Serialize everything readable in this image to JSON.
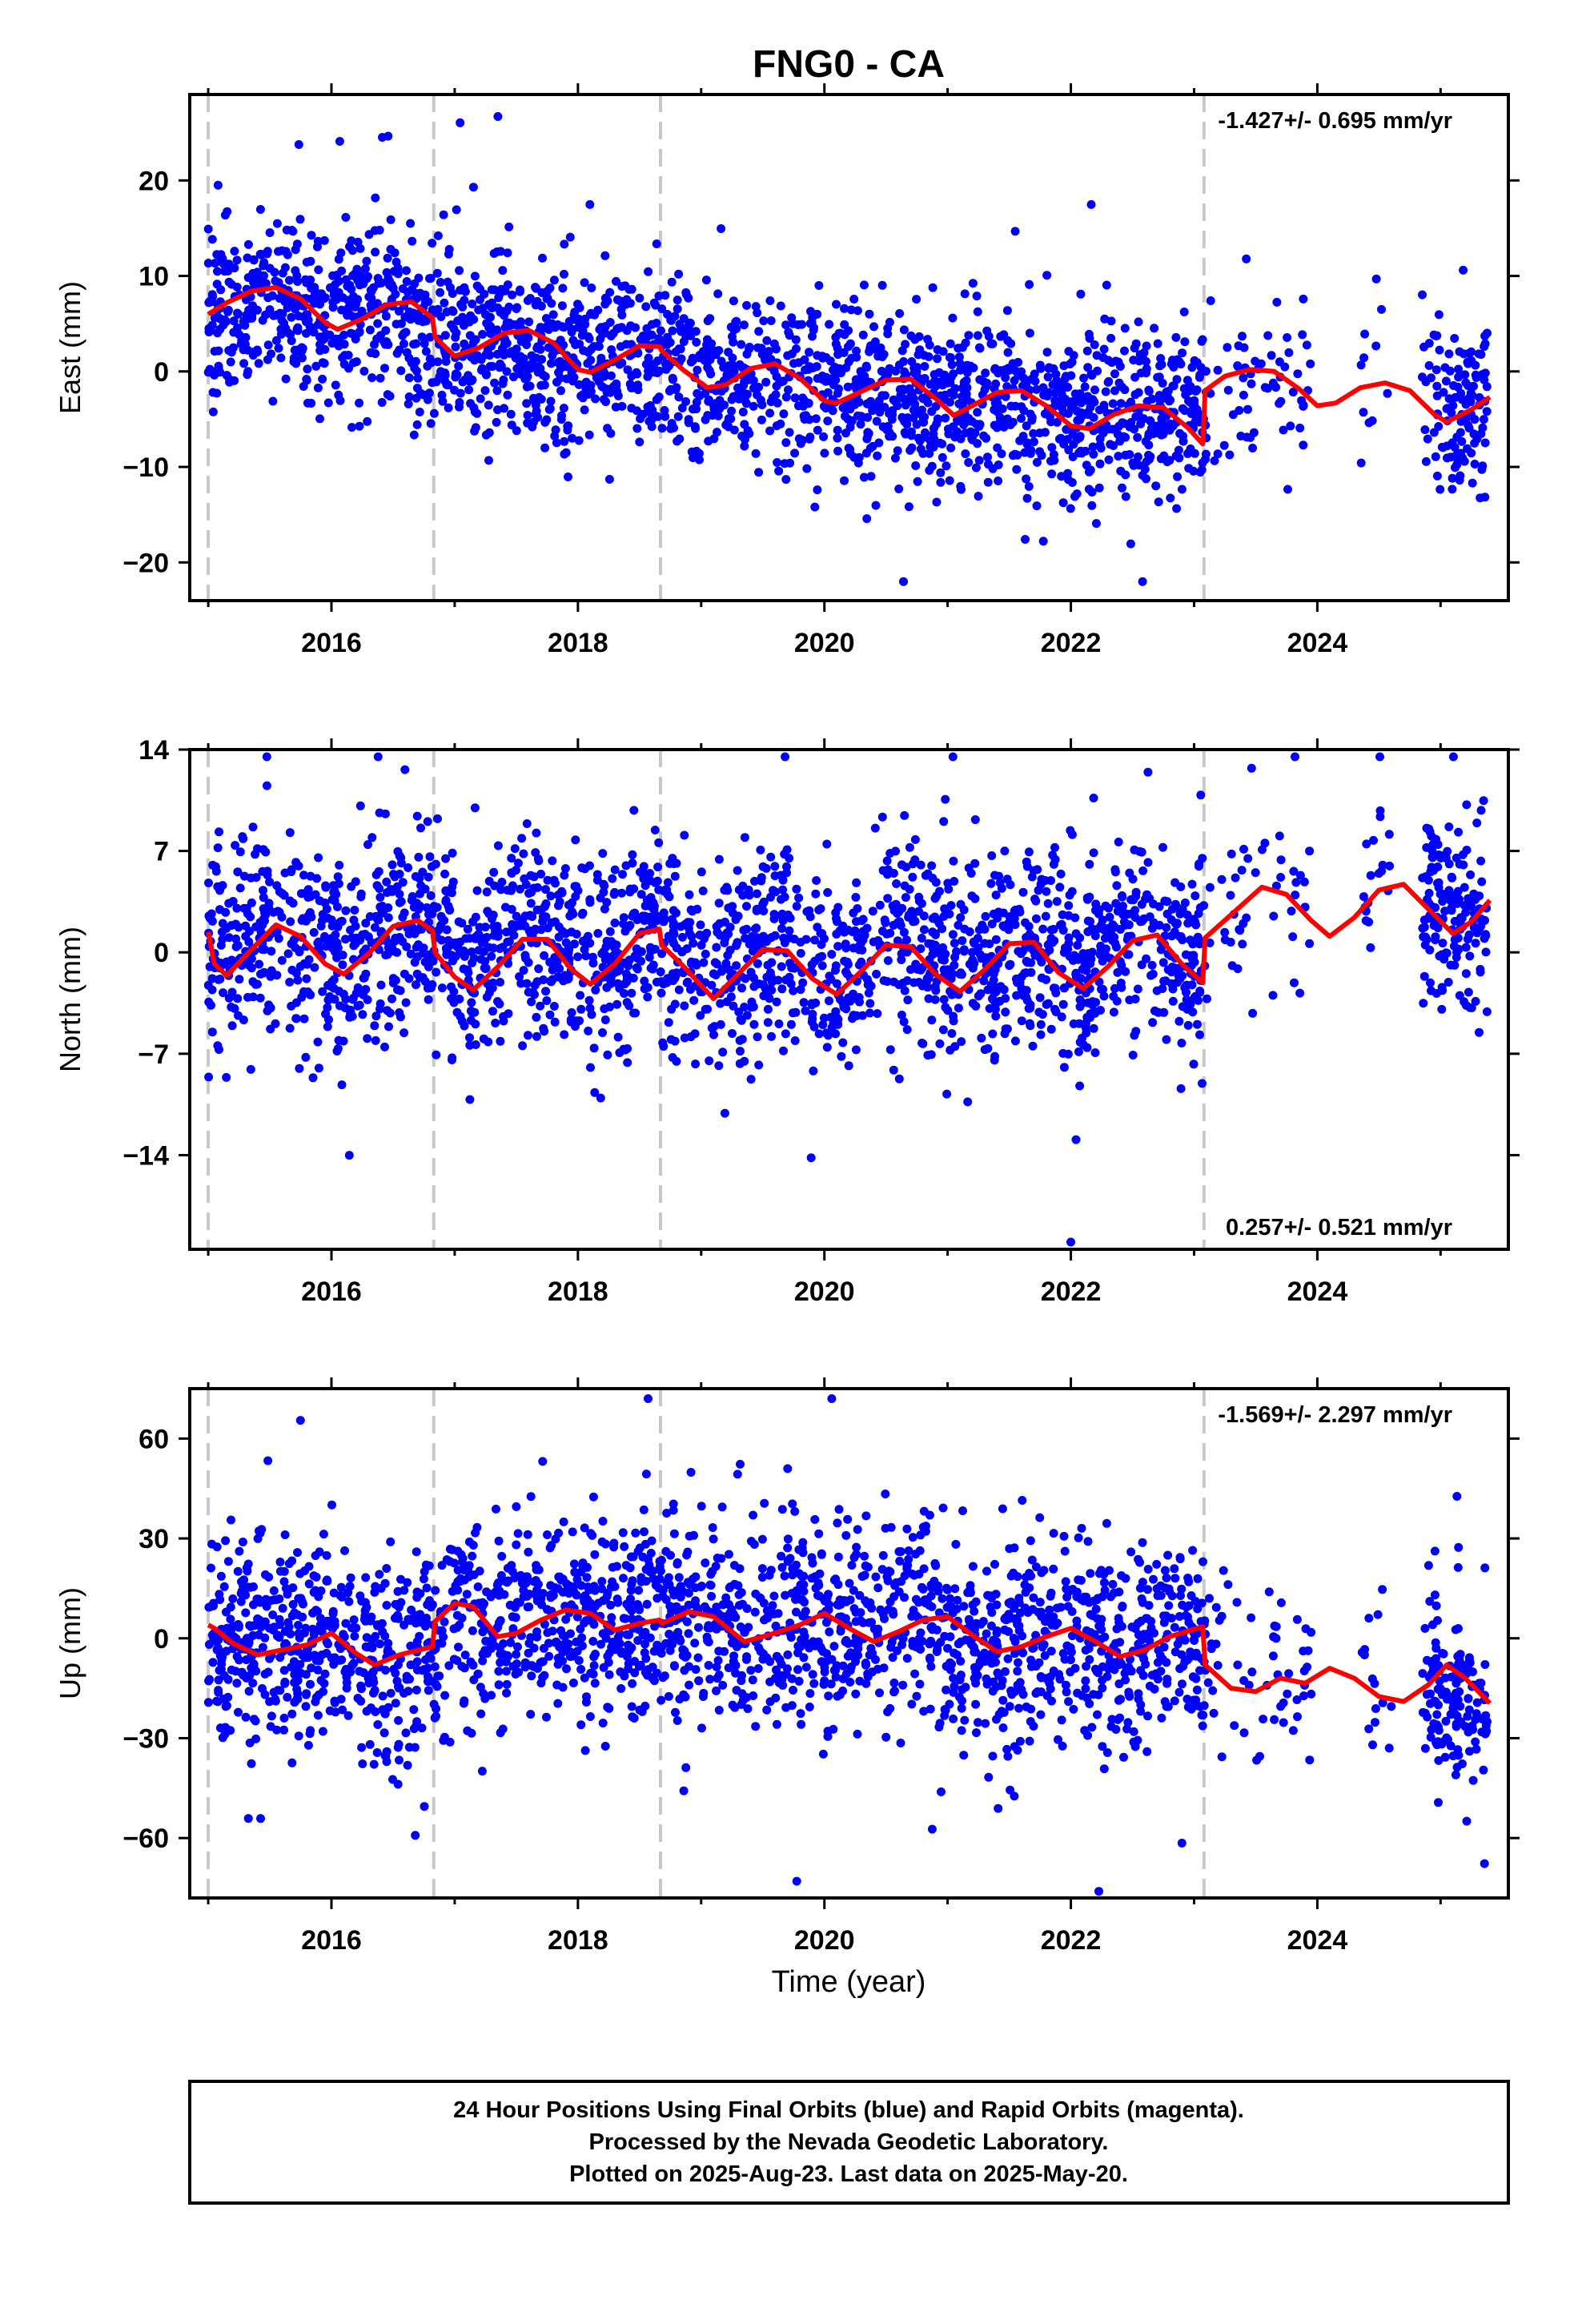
{
  "figure": {
    "title": "FNG0 - CA",
    "xlabel": "Time (year)",
    "footer_lines": [
      "24 Hour Positions Using Final Orbits (blue) and Rapid Orbits (magenta).",
      "Processed by the Nevada Geodetic Laboratory.",
      "Plotted on 2025-Aug-23. Last data on 2025-May-20."
    ],
    "colors": {
      "data": "#0000ff",
      "model": "#ff0000",
      "breaks": "#c8c8c8",
      "frame": "#000000"
    }
  },
  "chart_data": [
    {
      "type": "scatter",
      "ylabel": "East (mm)",
      "rate_label": "-1.427+/- 0.695 mm/yr",
      "rate_position": "top-right",
      "xlim": [
        2014.85,
        2025.55
      ],
      "ylim": [
        -24,
        29
      ],
      "xticks": [
        2016,
        2018,
        2020,
        2022,
        2024
      ],
      "yticks": [
        -20,
        -10,
        0,
        10,
        20
      ],
      "breaks": [
        2015.0,
        2016.83,
        2018.67,
        2023.08
      ],
      "gaps": [
        [
          2023.95,
          2024.35
        ],
        [
          2024.6,
          2024.85
        ]
      ],
      "sparse": [
        [
          2023.1,
          2023.95
        ],
        [
          2024.35,
          2024.6
        ]
      ],
      "series": [
        {
          "name": "Final Orbits",
          "color": "#0000ff",
          "mean": [
            [
              2015.0,
              5
            ],
            [
              2015.5,
              8
            ],
            [
              2016.0,
              5
            ],
            [
              2016.5,
              7
            ],
            [
              2016.83,
              3
            ],
            [
              2017.5,
              3
            ],
            [
              2018.0,
              1
            ],
            [
              2018.67,
              2
            ],
            [
              2019.0,
              -1
            ],
            [
              2019.5,
              0
            ],
            [
              2020.0,
              -2
            ],
            [
              2020.5,
              -2
            ],
            [
              2021.0,
              -4
            ],
            [
              2021.5,
              -3
            ],
            [
              2022.0,
              -5
            ],
            [
              2022.5,
              -4
            ],
            [
              2023.08,
              -4
            ],
            [
              2023.5,
              1
            ],
            [
              2024.0,
              -2
            ],
            [
              2024.5,
              -1
            ],
            [
              2025.0,
              -4
            ],
            [
              2025.4,
              -4
            ]
          ],
          "scatter_sd": 4.5,
          "n_points": 2400,
          "outlier_range": [
            -22,
            28
          ]
        }
      ],
      "model": [
        [
          2015.0,
          6
        ],
        [
          2015.15,
          7.2
        ],
        [
          2015.35,
          8.4
        ],
        [
          2015.55,
          8.8
        ],
        [
          2015.75,
          7.6
        ],
        [
          2015.95,
          5.1
        ],
        [
          2016.05,
          4.4
        ],
        [
          2016.25,
          5.5
        ],
        [
          2016.45,
          7.0
        ],
        [
          2016.65,
          7.3
        ],
        [
          2016.82,
          5.6
        ],
        [
          2016.84,
          3.6
        ],
        [
          2017.0,
          1.6
        ],
        [
          2017.2,
          2.5
        ],
        [
          2017.4,
          4.0
        ],
        [
          2017.6,
          4.3
        ],
        [
          2017.8,
          3.0
        ],
        [
          2018.0,
          0.2
        ],
        [
          2018.1,
          -0.1
        ],
        [
          2018.3,
          1.2
        ],
        [
          2018.5,
          2.7
        ],
        [
          2018.66,
          2.6
        ],
        [
          2018.68,
          2.2
        ],
        [
          2018.85,
          0.2
        ],
        [
          2019.05,
          -1.7
        ],
        [
          2019.2,
          -1.4
        ],
        [
          2019.4,
          0.3
        ],
        [
          2019.6,
          0.8
        ],
        [
          2019.8,
          -0.7
        ],
        [
          2020.0,
          -3.1
        ],
        [
          2020.1,
          -3.3
        ],
        [
          2020.3,
          -2.1
        ],
        [
          2020.5,
          -0.9
        ],
        [
          2020.7,
          -0.8
        ],
        [
          2020.9,
          -2.8
        ],
        [
          2021.05,
          -4.6
        ],
        [
          2021.2,
          -3.6
        ],
        [
          2021.4,
          -2.2
        ],
        [
          2021.6,
          -2.0
        ],
        [
          2021.8,
          -3.6
        ],
        [
          2022.0,
          -5.7
        ],
        [
          2022.15,
          -6.0
        ],
        [
          2022.35,
          -4.5
        ],
        [
          2022.55,
          -3.6
        ],
        [
          2022.75,
          -3.8
        ],
        [
          2022.95,
          -5.9
        ],
        [
          2023.07,
          -7.6
        ],
        [
          2023.09,
          -2.0
        ],
        [
          2023.25,
          -0.5
        ],
        [
          2023.45,
          0.2
        ],
        [
          2023.65,
          0.0
        ],
        [
          2023.85,
          -1.8
        ],
        [
          2024.0,
          -3.6
        ],
        [
          2024.15,
          -3.3
        ],
        [
          2024.35,
          -1.7
        ],
        [
          2024.55,
          -1.2
        ],
        [
          2024.75,
          -2.0
        ],
        [
          2024.95,
          -4.5
        ],
        [
          2025.05,
          -5.3
        ],
        [
          2025.25,
          -4.0
        ],
        [
          2025.4,
          -2.7
        ]
      ]
    },
    {
      "type": "scatter",
      "ylabel": "North (mm)",
      "rate_label": "0.257+/- 0.521 mm/yr",
      "rate_position": "bottom-right",
      "xlim": [
        2014.85,
        2025.55
      ],
      "ylim": [
        -20.5,
        14
      ],
      "xticks": [
        2016,
        2018,
        2020,
        2022,
        2024
      ],
      "yticks": [
        -14,
        -7,
        0,
        7,
        14
      ],
      "breaks": [
        2015.0,
        2016.83,
        2018.67,
        2023.08
      ],
      "gaps": [
        [
          2023.95,
          2024.35
        ],
        [
          2024.6,
          2024.85
        ]
      ],
      "sparse": [
        [
          2023.1,
          2023.95
        ],
        [
          2024.35,
          2024.6
        ]
      ],
      "series": [
        {
          "name": "Final Orbits",
          "color": "#0000ff",
          "mean": [
            [
              2015.0,
              0
            ],
            [
              2015.6,
              2
            ],
            [
              2016.2,
              -1
            ],
            [
              2016.7,
              3
            ],
            [
              2017.1,
              -1
            ],
            [
              2017.6,
              2
            ],
            [
              2018.1,
              -1
            ],
            [
              2018.6,
              2
            ],
            [
              2019.1,
              -2
            ],
            [
              2019.6,
              1
            ],
            [
              2020.1,
              -2
            ],
            [
              2020.6,
              2
            ],
            [
              2021.1,
              -2
            ],
            [
              2021.6,
              1
            ],
            [
              2022.1,
              -2
            ],
            [
              2022.6,
              2
            ],
            [
              2023.0,
              -1
            ],
            [
              2023.5,
              5
            ],
            [
              2024.0,
              2
            ],
            [
              2024.6,
              5
            ],
            [
              2025.0,
              3
            ],
            [
              2025.4,
              2
            ]
          ],
          "scatter_sd": 3.4,
          "n_points": 2400,
          "outlier_range": [
            -20,
            13.5
          ]
        }
      ],
      "model": [
        [
          2015.0,
          1.4
        ],
        [
          2015.05,
          -0.8
        ],
        [
          2015.15,
          -1.6
        ],
        [
          2015.35,
          0.2
        ],
        [
          2015.55,
          1.9
        ],
        [
          2015.75,
          1.1
        ],
        [
          2015.95,
          -0.8
        ],
        [
          2016.1,
          -1.5
        ],
        [
          2016.3,
          -0.1
        ],
        [
          2016.5,
          1.8
        ],
        [
          2016.7,
          2.2
        ],
        [
          2016.82,
          1.5
        ],
        [
          2016.84,
          0.0
        ],
        [
          2017.0,
          -1.7
        ],
        [
          2017.15,
          -2.6
        ],
        [
          2017.35,
          -1.0
        ],
        [
          2017.55,
          0.9
        ],
        [
          2017.75,
          0.9
        ],
        [
          2017.95,
          -1.2
        ],
        [
          2018.1,
          -2.2
        ],
        [
          2018.3,
          -0.8
        ],
        [
          2018.5,
          1.3
        ],
        [
          2018.66,
          1.6
        ],
        [
          2018.68,
          0.5
        ],
        [
          2018.85,
          -0.9
        ],
        [
          2019.1,
          -3.2
        ],
        [
          2019.3,
          -1.5
        ],
        [
          2019.5,
          0.2
        ],
        [
          2019.7,
          0.1
        ],
        [
          2019.9,
          -1.8
        ],
        [
          2020.1,
          -2.9
        ],
        [
          2020.3,
          -1.3
        ],
        [
          2020.5,
          0.5
        ],
        [
          2020.7,
          0.4
        ],
        [
          2020.9,
          -1.5
        ],
        [
          2021.1,
          -2.7
        ],
        [
          2021.3,
          -1.2
        ],
        [
          2021.5,
          0.6
        ],
        [
          2021.7,
          0.7
        ],
        [
          2021.9,
          -1.4
        ],
        [
          2022.1,
          -2.5
        ],
        [
          2022.3,
          -1.0
        ],
        [
          2022.5,
          0.8
        ],
        [
          2022.7,
          1.2
        ],
        [
          2022.9,
          -0.8
        ],
        [
          2023.07,
          -2.1
        ],
        [
          2023.09,
          1.0
        ],
        [
          2023.3,
          2.6
        ],
        [
          2023.55,
          4.5
        ],
        [
          2023.75,
          4.0
        ],
        [
          2023.95,
          2.2
        ],
        [
          2024.1,
          1.1
        ],
        [
          2024.3,
          2.4
        ],
        [
          2024.5,
          4.3
        ],
        [
          2024.7,
          4.7
        ],
        [
          2024.9,
          3.0
        ],
        [
          2025.1,
          1.3
        ],
        [
          2025.25,
          2.1
        ],
        [
          2025.4,
          3.6
        ]
      ]
    },
    {
      "type": "scatter",
      "ylabel": "Up (mm)",
      "rate_label": "-1.569+/- 2.297 mm/yr",
      "rate_position": "top-right",
      "xlim": [
        2014.85,
        2025.55
      ],
      "ylim": [
        -78,
        75
      ],
      "xticks": [
        2016,
        2018,
        2020,
        2022,
        2024
      ],
      "yticks": [
        -60,
        -30,
        0,
        30,
        60
      ],
      "breaks": [
        2015.0,
        2016.83,
        2018.67,
        2023.08
      ],
      "gaps": [
        [
          2023.95,
          2024.35
        ],
        [
          2024.6,
          2024.85
        ]
      ],
      "sparse": [
        [
          2023.1,
          2023.95
        ],
        [
          2024.35,
          2024.6
        ]
      ],
      "series": [
        {
          "name": "Final Orbits",
          "color": "#0000ff",
          "mean": [
            [
              2015.0,
              0
            ],
            [
              2015.5,
              -5
            ],
            [
              2016.0,
              0
            ],
            [
              2016.4,
              -8
            ],
            [
              2016.83,
              -2
            ],
            [
              2017.0,
              10
            ],
            [
              2017.3,
              2
            ],
            [
              2017.8,
              8
            ],
            [
              2018.3,
              5
            ],
            [
              2018.8,
              8
            ],
            [
              2019.3,
              2
            ],
            [
              2019.8,
              5
            ],
            [
              2020.3,
              0
            ],
            [
              2020.8,
              8
            ],
            [
              2021.3,
              -5
            ],
            [
              2021.8,
              2
            ],
            [
              2022.3,
              -5
            ],
            [
              2022.8,
              2
            ],
            [
              2023.08,
              0
            ],
            [
              2023.5,
              -15
            ],
            [
              2024.0,
              -10
            ],
            [
              2024.5,
              -18
            ],
            [
              2025.0,
              -12
            ],
            [
              2025.4,
              -20
            ]
          ],
          "scatter_sd": 15,
          "n_points": 2400,
          "outlier_range": [
            -76,
            72
          ]
        }
      ],
      "model": [
        [
          2015.0,
          4.0
        ],
        [
          2015.05,
          3.0
        ],
        [
          2015.2,
          -1.5
        ],
        [
          2015.4,
          -5.0
        ],
        [
          2015.6,
          -3.5
        ],
        [
          2015.8,
          -2.0
        ],
        [
          2016.0,
          1.5
        ],
        [
          2016.2,
          -4.5
        ],
        [
          2016.35,
          -8.0
        ],
        [
          2016.55,
          -5.0
        ],
        [
          2016.82,
          -2.5
        ],
        [
          2016.84,
          5.0
        ],
        [
          2017.0,
          10.5
        ],
        [
          2017.15,
          9.5
        ],
        [
          2017.35,
          0.5
        ],
        [
          2017.5,
          1.5
        ],
        [
          2017.7,
          5.5
        ],
        [
          2017.9,
          8.5
        ],
        [
          2018.1,
          7.5
        ],
        [
          2018.3,
          2.5
        ],
        [
          2018.5,
          4.5
        ],
        [
          2018.66,
          5.5
        ],
        [
          2018.68,
          4.5
        ],
        [
          2018.9,
          8.0
        ],
        [
          2019.1,
          6.5
        ],
        [
          2019.35,
          -1.0
        ],
        [
          2019.55,
          1.0
        ],
        [
          2019.8,
          4.0
        ],
        [
          2020.0,
          7.5
        ],
        [
          2020.2,
          3.0
        ],
        [
          2020.4,
          -1.0
        ],
        [
          2020.6,
          2.0
        ],
        [
          2020.8,
          5.5
        ],
        [
          2021.0,
          6.5
        ],
        [
          2021.2,
          1.0
        ],
        [
          2021.4,
          -4.0
        ],
        [
          2021.6,
          -2.5
        ],
        [
          2021.8,
          0.5
        ],
        [
          2022.0,
          3.0
        ],
        [
          2022.2,
          -1.0
        ],
        [
          2022.4,
          -5.5
        ],
        [
          2022.6,
          -3.5
        ],
        [
          2022.8,
          0.5
        ],
        [
          2023.07,
          3.5
        ],
        [
          2023.09,
          -8.0
        ],
        [
          2023.3,
          -15.0
        ],
        [
          2023.5,
          -16.0
        ],
        [
          2023.7,
          -12.0
        ],
        [
          2023.9,
          -13.5
        ],
        [
          2024.1,
          -9.0
        ],
        [
          2024.3,
          -12.0
        ],
        [
          2024.5,
          -17.5
        ],
        [
          2024.7,
          -19.0
        ],
        [
          2024.9,
          -14.0
        ],
        [
          2025.05,
          -8.0
        ],
        [
          2025.2,
          -12.0
        ],
        [
          2025.4,
          -19.5
        ]
      ]
    }
  ]
}
